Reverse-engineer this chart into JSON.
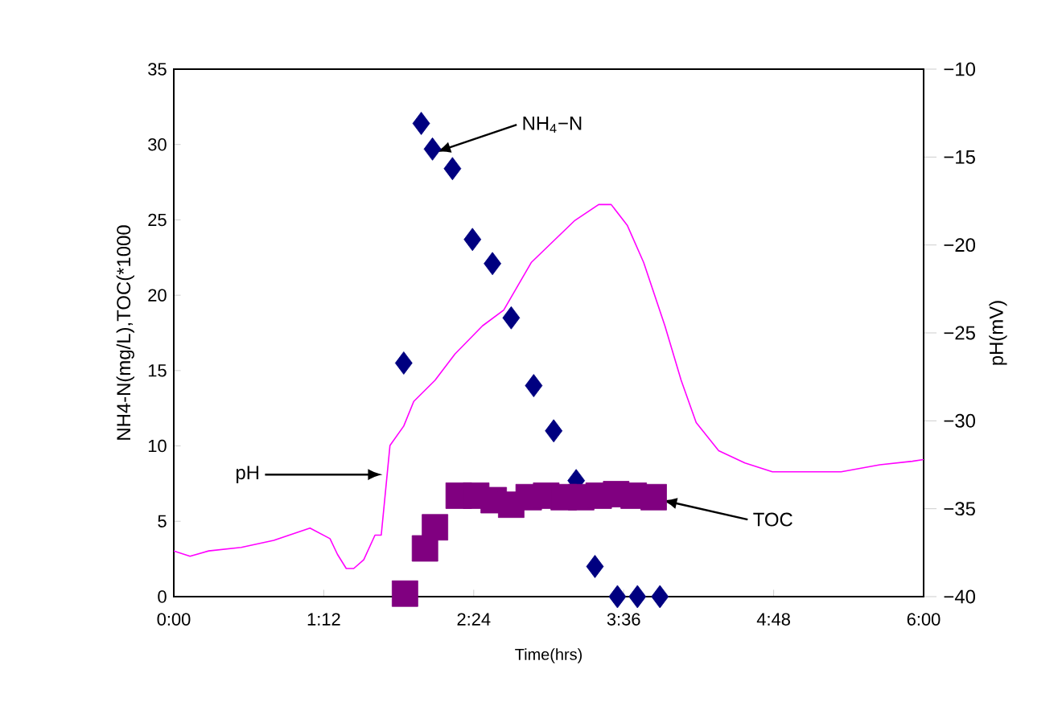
{
  "chart_data": {
    "type": "scatter",
    "xlabel": "Time(hrs)",
    "ylabel": "NH4-N(mg/L),TOC(*1000",
    "y2label": "pH(mV)",
    "xlim": [
      0,
      6
    ],
    "xticks": [
      {
        "value": 0,
        "label": "0:00"
      },
      {
        "value": 1.2,
        "label": "1:12"
      },
      {
        "value": 2.4,
        "label": "2:24"
      },
      {
        "value": 3.6,
        "label": "3:36"
      },
      {
        "value": 4.8,
        "label": "4:48"
      },
      {
        "value": 6,
        "label": "6:00"
      }
    ],
    "ylim": [
      0,
      35
    ],
    "yticks": [
      0,
      5,
      10,
      15,
      20,
      25,
      30,
      35
    ],
    "y2lim": [
      -40,
      -10
    ],
    "y2ticks": [
      {
        "value": -40,
        "label": "−40"
      },
      {
        "value": -35,
        "label": "−35"
      },
      {
        "value": -30,
        "label": "−30"
      },
      {
        "value": -25,
        "label": "−25"
      },
      {
        "value": -20,
        "label": "−20"
      },
      {
        "value": -15,
        "label": "−15"
      },
      {
        "value": -10,
        "label": "−10"
      }
    ],
    "series": [
      {
        "marker": "diamond",
        "color": "#000080",
        "x": [
          1.84,
          1.98,
          2.07,
          2.23,
          2.39,
          2.55,
          2.7,
          2.88,
          3.04,
          3.22,
          3.37,
          3.55,
          3.71,
          3.89
        ],
        "values": [
          15.5,
          31.4,
          29.7,
          28.4,
          23.7,
          22.1,
          18.5,
          14.0,
          11.0,
          7.7,
          2.0,
          0,
          0,
          0
        ]
      },
      {
        "marker": "square",
        "color": "#800080",
        "x": [
          1.85,
          2.01,
          2.09,
          2.28,
          2.42,
          2.56,
          2.7,
          2.84,
          2.98,
          3.12,
          3.26,
          3.4,
          3.54,
          3.68,
          3.84
        ],
        "values": [
          0.2,
          3.2,
          4.6,
          6.7,
          6.7,
          6.4,
          6.1,
          6.6,
          6.7,
          6.6,
          6.6,
          6.7,
          6.8,
          6.7,
          6.6
        ]
      },
      {
        "type": "line",
        "axis": "y2",
        "marker": "none",
        "color": "#ff00ff",
        "x": [
          0,
          0.13,
          0.28,
          0.54,
          0.8,
          1.09,
          1.25,
          1.31,
          1.38,
          1.44,
          1.52,
          1.61,
          1.66,
          1.73,
          1.84,
          1.92,
          2.09,
          2.25,
          2.47,
          2.64,
          2.86,
          3.21,
          3.4,
          3.5,
          3.63,
          3.76,
          3.93,
          4.06,
          4.18,
          4.36,
          4.57,
          4.79,
          5.34,
          5.65,
          5.91,
          6.0
        ],
        "values": [
          -37.4,
          -37.7,
          -37.4,
          -37.2,
          -36.8,
          -36.1,
          -36.7,
          -37.6,
          -38.4,
          -38.4,
          -37.9,
          -36.5,
          -36.5,
          -31.4,
          -30.3,
          -28.9,
          -27.7,
          -26.2,
          -24.6,
          -23.7,
          -21.0,
          -18.6,
          -17.7,
          -17.7,
          -18.9,
          -21.0,
          -24.6,
          -27.7,
          -30.1,
          -31.7,
          -32.4,
          -32.9,
          -32.9,
          -32.5,
          -32.3,
          -32.2
        ]
      }
    ],
    "annotations": [
      {
        "text": "NH$_{4}$−N",
        "x": 2.1,
        "y": 29.5
      },
      "pH",
      {
        "text": "TOC",
        "x": 3.91,
        "y": 6.4
      }
    ]
  }
}
